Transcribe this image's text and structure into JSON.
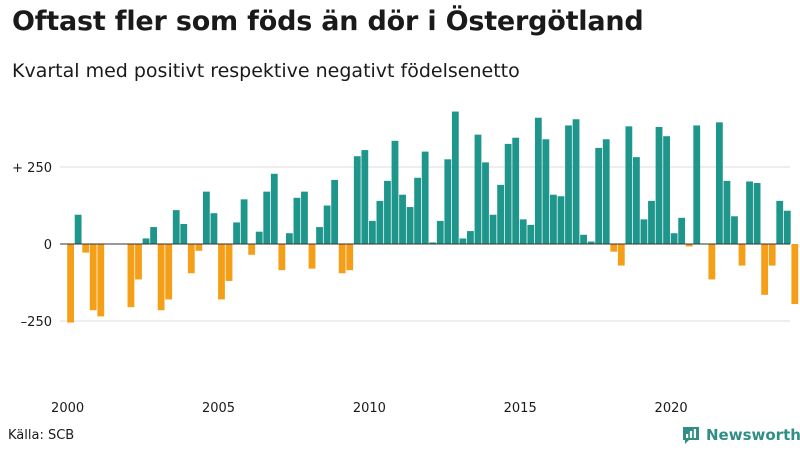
{
  "chart_data": {
    "type": "bar",
    "title": "Oftast fler som föds än dör i Östergötland",
    "subtitle": "Kvartal med positivt respektive negativt födelsenetto",
    "xlabel": "",
    "ylabel": "",
    "start_year": 2000,
    "periods_per_year": 4,
    "x_tick_labels": [
      "2000",
      "2005",
      "2010",
      "2015",
      "2020"
    ],
    "y_ticks": [
      {
        "value": 250,
        "label": "+ 250"
      },
      {
        "value": 0,
        "label": "0"
      },
      {
        "value": -250,
        "label": "–250"
      }
    ],
    "ylim": [
      -420,
      460
    ],
    "values": [
      -255,
      95,
      -28,
      -215,
      -235,
      0,
      0,
      0,
      -205,
      -115,
      18,
      55,
      -215,
      -180,
      110,
      65,
      -95,
      -22,
      170,
      100,
      -180,
      -120,
      70,
      145,
      -35,
      40,
      170,
      228,
      -85,
      35,
      150,
      170,
      -80,
      55,
      125,
      208,
      -95,
      -85,
      285,
      305,
      75,
      140,
      205,
      335,
      160,
      120,
      215,
      300,
      5,
      75,
      275,
      430,
      18,
      42,
      355,
      265,
      95,
      192,
      325,
      345,
      80,
      62,
      410,
      340,
      160,
      155,
      385,
      405,
      30,
      8,
      312,
      340,
      -25,
      -70,
      382,
      282,
      80,
      140,
      380,
      350,
      35,
      85,
      -8,
      385,
      0,
      -115,
      395,
      205,
      90,
      -70,
      203,
      198,
      -165,
      -70,
      140,
      108,
      -195
    ],
    "colors": {
      "positive": "#1f968b",
      "negative": "#f59e17",
      "grid": "#dcdcdc",
      "zero_line": "#333333"
    }
  },
  "source": "Källa: SCB",
  "brand": {
    "name": "Newsworthy",
    "color": "#2f8e86",
    "icon": "bar-chart-speech-bubble-icon"
  }
}
